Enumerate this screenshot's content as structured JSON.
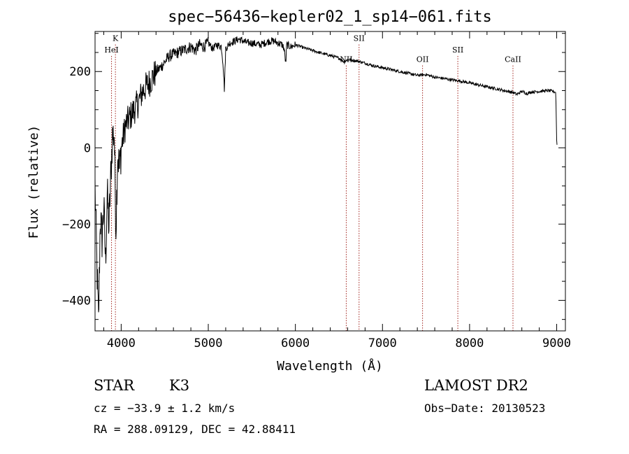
{
  "chart_data": {
    "type": "line",
    "title": "spec−56436−kepler02_1_sp14−061.fits",
    "xlabel": "Wavelength (Å)",
    "ylabel": "Flux (relative)",
    "xlim": [
      3700,
      9100
    ],
    "ylim": [
      -480,
      305
    ],
    "xticks": [
      4000,
      5000,
      6000,
      7000,
      8000,
      9000
    ],
    "xtick_labels": [
      "4000",
      "5000",
      "6000",
      "7000",
      "8000",
      "9000"
    ],
    "yticks": [
      -400,
      -200,
      0,
      200
    ],
    "ytick_labels": [
      "−400",
      "−200",
      "0",
      "200"
    ],
    "lines": [
      {
        "name": "K",
        "wave": 3934,
        "label_y": 280
      },
      {
        "name": "HeI",
        "wave": 3889,
        "label_y": 250
      },
      {
        "name": "NII",
        "wave": 6584,
        "label_y": 225
      },
      {
        "name": "SII",
        "wave": 6731,
        "label_y": 280
      },
      {
        "name": "OII",
        "wave": 7460,
        "label_y": 225
      },
      {
        "name": "SII",
        "wave": 7865,
        "label_y": 250
      },
      {
        "name": "CaII",
        "wave": 8498,
        "label_y": 225
      }
    ],
    "spectrum": {
      "x": [
        3700,
        3720,
        3740,
        3760,
        3780,
        3800,
        3820,
        3840,
        3860,
        3880,
        3900,
        3920,
        3940,
        3960,
        3980,
        4000,
        4050,
        4100,
        4150,
        4200,
        4250,
        4300,
        4350,
        4400,
        4450,
        4500,
        4550,
        4600,
        4650,
        4700,
        4750,
        4800,
        4850,
        4900,
        4950,
        5000,
        5050,
        5100,
        5150,
        5170,
        5185,
        5200,
        5250,
        5300,
        5350,
        5400,
        5450,
        5500,
        5550,
        5600,
        5650,
        5700,
        5750,
        5800,
        5850,
        5870,
        5890,
        5900,
        5950,
        6000,
        6100,
        6200,
        6300,
        6400,
        6500,
        6563,
        6600,
        6700,
        6800,
        6900,
        7000,
        7100,
        7200,
        7300,
        7400,
        7500,
        7600,
        7700,
        7800,
        7900,
        8000,
        8100,
        8200,
        8300,
        8400,
        8500,
        8542,
        8600,
        8662,
        8700,
        8800,
        8900,
        8960,
        8990,
        9000,
        9005
      ],
      "y": [
        -100,
        -300,
        -460,
        -180,
        -240,
        -150,
        -300,
        -120,
        -210,
        -80,
        30,
        40,
        -210,
        -10,
        -60,
        0,
        60,
        80,
        100,
        120,
        150,
        165,
        180,
        200,
        210,
        225,
        240,
        245,
        250,
        255,
        260,
        265,
        255,
        270,
        265,
        275,
        260,
        270,
        265,
        220,
        150,
        260,
        275,
        280,
        285,
        280,
        275,
        275,
        272,
        270,
        275,
        280,
        280,
        275,
        270,
        260,
        220,
        270,
        265,
        270,
        262,
        255,
        248,
        242,
        235,
        225,
        232,
        228,
        222,
        215,
        210,
        205,
        200,
        195,
        190,
        192,
        185,
        182,
        178,
        175,
        170,
        165,
        160,
        155,
        150,
        145,
        140,
        148,
        142,
        146,
        148,
        150,
        148,
        145,
        20,
        5
      ]
    }
  },
  "info": {
    "object_class": "STAR",
    "subclass": "K3",
    "survey": "LAMOST DR2",
    "cz": "cz = −33.9 ± 1.2 km/s",
    "obs_date": "Obs−Date: 20130523",
    "coords": "RA = 288.09129, DEC =  42.88411"
  }
}
